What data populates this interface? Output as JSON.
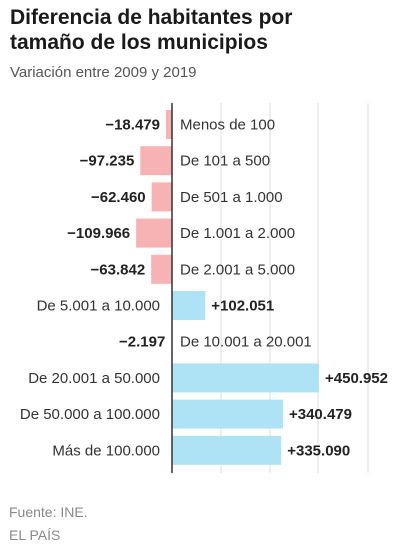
{
  "title_lines": [
    "Diferencia de habitantes por",
    "tamaño de los municipios"
  ],
  "subtitle": "Variación entre 2009 y 2019",
  "source": "Fuente: INE.",
  "brand": "EL PAÍS",
  "chart_data": {
    "type": "bar",
    "orientation": "horizontal",
    "title": "Diferencia de habitantes por tamaño de los municipios",
    "subtitle": "Variación entre 2009 y 2019",
    "categories": [
      "Menos de 100",
      "De 101 a 500",
      "De 501 a 1.000",
      "De 1.001 a 2.000",
      "De 2.001 a 5.000",
      "De 5.001 a 10.000",
      "De 10.001 a 20.001",
      "De 20.001 a 50.000",
      "De 50.000 a 100.000",
      "Más de 100.000"
    ],
    "values": [
      -18479,
      -97235,
      -62460,
      -109966,
      -63842,
      102051,
      -2197,
      450952,
      340479,
      335090
    ],
    "value_labels": [
      "−18.479",
      "−97.235",
      "−62.460",
      "−109.966",
      "−63.842",
      "+102.051",
      "−2.197",
      "+450.952",
      "+340.479",
      "+335.090"
    ],
    "colors": {
      "negative": "#f7b3b3",
      "positive": "#aee3f6",
      "grid": "#dddddd",
      "axis": "#333333"
    },
    "grid": true,
    "legend": "none"
  }
}
